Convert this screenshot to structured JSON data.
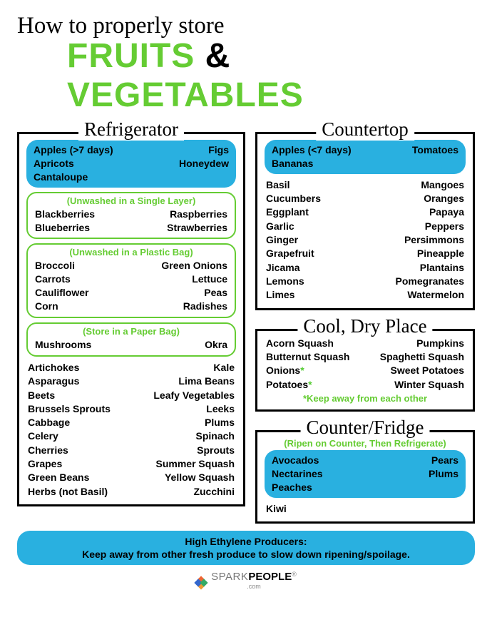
{
  "colors": {
    "green": "#65cc33",
    "green_border": "#65cc33",
    "blue_fill": "#29b0e0",
    "black": "#000000",
    "white": "#ffffff"
  },
  "title": {
    "line1": "How to properly store",
    "word1": "FRUITS",
    "amp": "&",
    "word2": "VEGETABLES",
    "fontsize_line1": 33,
    "fontsize_line2": 48
  },
  "refrigerator": {
    "heading": "Refrigerator",
    "highlight": {
      "left": [
        "Apples (>7 days)",
        "Apricots",
        "Cantaloupe"
      ],
      "right": [
        "Figs",
        "Honeydew"
      ]
    },
    "group1": {
      "label": "(Unwashed in a Single Layer)",
      "left": [
        "Blackberries",
        "Blueberries"
      ],
      "right": [
        "Raspberries",
        "Strawberries"
      ]
    },
    "group2": {
      "label": "(Unwashed in a Plastic Bag)",
      "left": [
        "Broccoli",
        "Carrots",
        "Cauliflower",
        "Corn"
      ],
      "right": [
        "Green Onions",
        "Lettuce",
        "Peas",
        "Radishes"
      ]
    },
    "group3": {
      "label": "(Store in a Paper Bag)",
      "left": [
        "Mushrooms"
      ],
      "right": [
        "Okra"
      ]
    },
    "rest": {
      "left": [
        "Artichokes",
        "Asparagus",
        "Beets",
        "Brussels Sprouts",
        "Cabbage",
        "Celery",
        "Cherries",
        "Grapes",
        "Green Beans",
        "Herbs (not Basil)"
      ],
      "right": [
        "Kale",
        "Lima Beans",
        "Leafy Vegetables",
        "Leeks",
        "Plums",
        "Spinach",
        "Sprouts",
        "Summer Squash",
        "Yellow Squash",
        "Zucchini"
      ]
    }
  },
  "countertop": {
    "heading": "Countertop",
    "highlight": {
      "left": [
        "Apples (<7 days)",
        "Bananas"
      ],
      "right": [
        "Tomatoes"
      ]
    },
    "rest": {
      "left": [
        "Basil",
        "Cucumbers",
        "Eggplant",
        "Garlic",
        "Ginger",
        "Grapefruit",
        "Jicama",
        "Lemons",
        "Limes"
      ],
      "right": [
        "Mangoes",
        "Oranges",
        "Papaya",
        "Peppers",
        "Persimmons",
        "Pineapple",
        "Plantains",
        "Pomegranates",
        "Watermelon"
      ]
    }
  },
  "cooldry": {
    "heading": "Cool, Dry Place",
    "rest": {
      "left": [
        "Acorn Squash",
        "Butternut Squash",
        "Onions*",
        "Potatoes*"
      ],
      "right": [
        "Pumpkins",
        "Spaghetti Squash",
        "Sweet Potatoes",
        "Winter Squash"
      ]
    },
    "note": "*Keep away from each other"
  },
  "counterfridge": {
    "heading": "Counter/Fridge",
    "sublabel": "(Ripen on Counter, Then Refrigerate)",
    "highlight": {
      "left": [
        "Avocados",
        "Nectarines",
        "Peaches"
      ],
      "right": [
        "Pears",
        "Plums"
      ]
    },
    "rest": {
      "left": [
        "Kiwi"
      ],
      "right": []
    }
  },
  "footer": {
    "line1": "High Ethylene Producers:",
    "line2": "Keep away from other fresh produce to slow down ripening/spoilage."
  },
  "brand": {
    "w1": "SPARK",
    "w2": "PEOPLE",
    "suffix": ".com"
  }
}
